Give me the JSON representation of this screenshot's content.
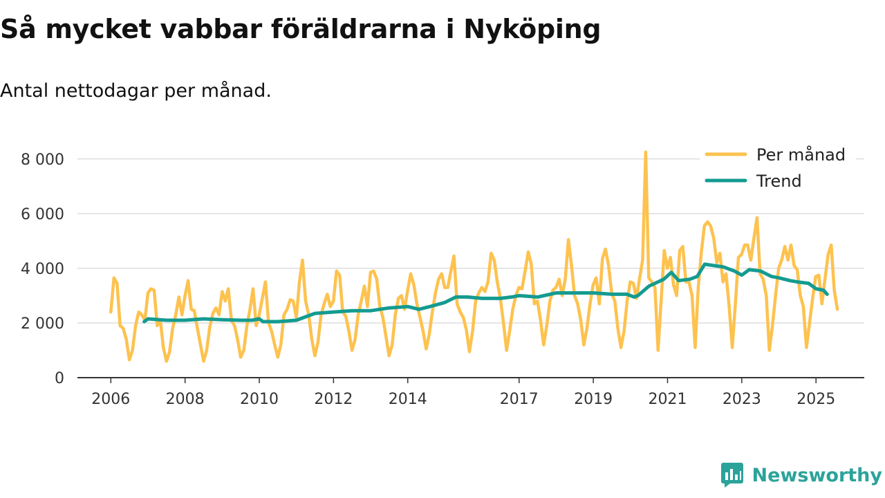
{
  "title": "Så mycket vabbar föräldrarna i Nyköping",
  "subtitle": "Antal nettodagar per månad.",
  "brand": {
    "name": "Newsworthy"
  },
  "colors": {
    "monthly": "#fdc24f",
    "trend": "#149b90",
    "grid": "#dddddd",
    "axis": "#333333"
  },
  "chart_data": {
    "type": "line",
    "y_ticks": [
      {
        "value": 0,
        "label": "0"
      },
      {
        "value": 2000,
        "label": "2 000"
      },
      {
        "value": 4000,
        "label": "4 000"
      },
      {
        "value": 6000,
        "label": "6 000"
      },
      {
        "value": 8000,
        "label": "8 000"
      }
    ],
    "x_ticks": [
      {
        "value": 2006,
        "label": "2006"
      },
      {
        "value": 2008,
        "label": "2008"
      },
      {
        "value": 2010,
        "label": "2010"
      },
      {
        "value": 2012,
        "label": "2012"
      },
      {
        "value": 2014,
        "label": "2014"
      },
      {
        "value": 2017,
        "label": "2017"
      },
      {
        "value": 2019,
        "label": "2019"
      },
      {
        "value": 2021,
        "label": "2021"
      },
      {
        "value": 2023,
        "label": "2023"
      },
      {
        "value": 2025,
        "label": "2025"
      }
    ],
    "xlim": [
      2005.1,
      2026.3
    ],
    "ylim": [
      0,
      8500
    ],
    "series": [
      {
        "name": "Per månad",
        "color": "#fdc24f",
        "start_year": 2006.0,
        "step_years": 0.0833,
        "values": [
          2400,
          3650,
          3450,
          1900,
          1800,
          1400,
          650,
          1000,
          1900,
          2400,
          2300,
          2100,
          3100,
          3250,
          3200,
          1900,
          2100,
          1100,
          600,
          950,
          1800,
          2300,
          2950,
          2300,
          3000,
          3550,
          2500,
          2450,
          1800,
          1200,
          600,
          1000,
          1850,
          2350,
          2550,
          2300,
          3150,
          2800,
          3250,
          2100,
          1900,
          1400,
          750,
          1000,
          1900,
          2500,
          3250,
          1900,
          2300,
          2900,
          3500,
          2000,
          1700,
          1200,
          750,
          1200,
          2300,
          2500,
          2850,
          2800,
          2200,
          3500,
          4300,
          2800,
          2300,
          1400,
          800,
          1300,
          2300,
          2700,
          3050,
          2600,
          2800,
          3900,
          3750,
          2400,
          2250,
          1700,
          1000,
          1400,
          2300,
          2800,
          3350,
          2600,
          3850,
          3900,
          3600,
          2600,
          2200,
          1500,
          800,
          1200,
          2300,
          2900,
          3000,
          2500,
          3200,
          3800,
          3400,
          2700,
          2200,
          1700,
          1050,
          1600,
          2400,
          3100,
          3600,
          3800,
          3300,
          3300,
          3900,
          4450,
          2700,
          2400,
          2200,
          1750,
          950,
          1700,
          2800,
          3100,
          3300,
          3150,
          3500,
          4550,
          4300,
          3500,
          2900,
          2000,
          1000,
          1700,
          2500,
          3000,
          3300,
          3250,
          3900,
          4600,
          4150,
          2700,
          2800,
          2100,
          1200,
          1900,
          2800,
          3200,
          3300,
          3600,
          3000,
          3600,
          5050,
          4100,
          3000,
          2700,
          2100,
          1200,
          1800,
          2700,
          3400,
          3650,
          2700,
          4350,
          4700,
          4100,
          3100,
          2800,
          1800,
          1100,
          1700,
          2800,
          3500,
          3450,
          2900,
          3600,
          4300,
          8250,
          3650,
          3500,
          3300,
          1000,
          2800,
          4650,
          4000,
          4400,
          3400,
          3000,
          4650,
          4800,
          3500,
          3500,
          3000,
          1100,
          3300,
          4600,
          5550,
          5700,
          5550,
          5100,
          4200,
          4550,
          3500,
          3800,
          2600,
          1100,
          2700,
          4400,
          4500,
          4850,
          4850,
          4300,
          5100,
          5850,
          3800,
          3600,
          3000,
          1000,
          1900,
          3000,
          4000,
          4300,
          4800,
          4300,
          4850,
          4100,
          3950,
          3000,
          2600,
          1100,
          2000,
          2900,
          3700,
          3750,
          2700,
          3600,
          4500,
          4850,
          3200,
          2500
        ]
      },
      {
        "name": "Trend",
        "color": "#149b90",
        "points": [
          [
            2006.9,
            2050
          ],
          [
            2007.0,
            2150
          ],
          [
            2007.5,
            2100
          ],
          [
            2008.0,
            2100
          ],
          [
            2008.5,
            2150
          ],
          [
            2009.0,
            2120
          ],
          [
            2009.5,
            2100
          ],
          [
            2009.8,
            2100
          ],
          [
            2010.0,
            2150
          ],
          [
            2010.1,
            2050
          ],
          [
            2010.5,
            2050
          ],
          [
            2011.0,
            2100
          ],
          [
            2011.2,
            2200
          ],
          [
            2011.5,
            2350
          ],
          [
            2012.0,
            2400
          ],
          [
            2012.5,
            2450
          ],
          [
            2013.0,
            2450
          ],
          [
            2013.5,
            2550
          ],
          [
            2014.0,
            2600
          ],
          [
            2014.3,
            2500
          ],
          [
            2014.6,
            2600
          ],
          [
            2015.0,
            2750
          ],
          [
            2015.3,
            2950
          ],
          [
            2015.6,
            2950
          ],
          [
            2016.0,
            2900
          ],
          [
            2016.5,
            2900
          ],
          [
            2016.8,
            2950
          ],
          [
            2017.0,
            3000
          ],
          [
            2017.5,
            2950
          ],
          [
            2018.0,
            3100
          ],
          [
            2018.5,
            3100
          ],
          [
            2019.0,
            3100
          ],
          [
            2019.5,
            3050
          ],
          [
            2019.9,
            3050
          ],
          [
            2020.1,
            2950
          ],
          [
            2020.2,
            3000
          ],
          [
            2020.5,
            3350
          ],
          [
            2020.9,
            3600
          ],
          [
            2021.1,
            3850
          ],
          [
            2021.3,
            3550
          ],
          [
            2021.6,
            3600
          ],
          [
            2021.8,
            3700
          ],
          [
            2022.0,
            4150
          ],
          [
            2022.5,
            4050
          ],
          [
            2022.8,
            3900
          ],
          [
            2023.0,
            3750
          ],
          [
            2023.2,
            3950
          ],
          [
            2023.5,
            3900
          ],
          [
            2023.8,
            3700
          ],
          [
            2024.0,
            3650
          ],
          [
            2024.3,
            3550
          ],
          [
            2024.5,
            3500
          ],
          [
            2024.8,
            3450
          ],
          [
            2025.0,
            3250
          ],
          [
            2025.2,
            3200
          ],
          [
            2025.3,
            3050
          ]
        ]
      }
    ]
  }
}
